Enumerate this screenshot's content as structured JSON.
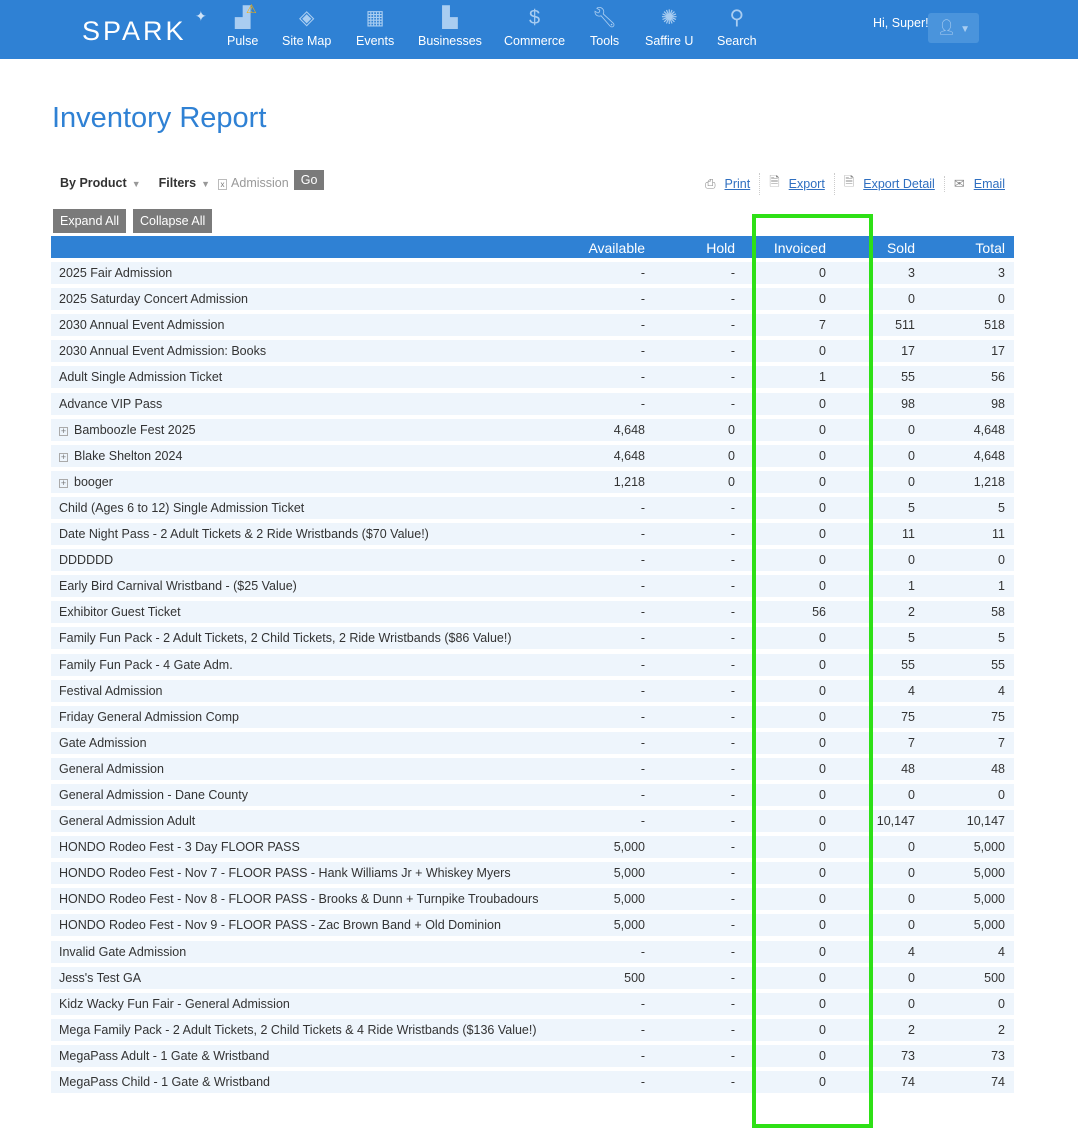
{
  "header": {
    "logo": "SPARK",
    "greeting": "Hi, Super!",
    "nav": [
      {
        "label": "Pulse",
        "icon": "chart-icon"
      },
      {
        "label": "Site Map",
        "icon": "layers-icon"
      },
      {
        "label": "Events",
        "icon": "calendar-icon"
      },
      {
        "label": "Businesses",
        "icon": "building-icon"
      },
      {
        "label": "Commerce",
        "icon": "dollar-icon"
      },
      {
        "label": "Tools",
        "icon": "wrench-icon"
      },
      {
        "label": "Saffire U",
        "icon": "seal-icon"
      },
      {
        "label": "Search",
        "icon": "search-icon"
      }
    ]
  },
  "page": {
    "title": "Inventory Report"
  },
  "toolbar": {
    "group_by": "By Product",
    "filters": "Filters",
    "filter_chip": "Admission",
    "go": "Go",
    "print": "Print",
    "export": "Export",
    "export_detail": "Export Detail",
    "email": "Email",
    "expand_all": "Expand All",
    "collapse_all": "Collapse All"
  },
  "table": {
    "columns": [
      "Available",
      "Hold",
      "Invoiced",
      "Sold",
      "Total"
    ],
    "rows": [
      [
        "2025 Fair Admission",
        "-",
        "-",
        "0",
        "3",
        "3",
        false
      ],
      [
        "2025 Saturday Concert Admission",
        "-",
        "-",
        "0",
        "0",
        "0",
        false
      ],
      [
        "2030 Annual Event Admission",
        "-",
        "-",
        "7",
        "511",
        "518",
        false
      ],
      [
        "2030 Annual Event Admission: Books",
        "-",
        "-",
        "0",
        "17",
        "17",
        false
      ],
      [
        "Adult Single Admission Ticket",
        "-",
        "-",
        "1",
        "55",
        "56",
        false
      ],
      [
        "Advance VIP Pass",
        "-",
        "-",
        "0",
        "98",
        "98",
        false
      ],
      [
        "Bamboozle Fest 2025",
        "4,648",
        "0",
        "0",
        "0",
        "4,648",
        true
      ],
      [
        "Blake Shelton 2024",
        "4,648",
        "0",
        "0",
        "0",
        "4,648",
        true
      ],
      [
        "booger",
        "1,218",
        "0",
        "0",
        "0",
        "1,218",
        true
      ],
      [
        "Child (Ages 6 to 12) Single Admission Ticket",
        "-",
        "-",
        "0",
        "5",
        "5",
        false
      ],
      [
        "Date Night Pass - 2 Adult Tickets & 2 Ride Wristbands ($70 Value!)",
        "-",
        "-",
        "0",
        "11",
        "11",
        false
      ],
      [
        "DDDDDD",
        "-",
        "-",
        "0",
        "0",
        "0",
        false
      ],
      [
        "Early Bird Carnival Wristband - ($25 Value)",
        "-",
        "-",
        "0",
        "1",
        "1",
        false
      ],
      [
        "Exhibitor Guest Ticket",
        "-",
        "-",
        "56",
        "2",
        "58",
        false
      ],
      [
        "Family Fun Pack - 2 Adult Tickets, 2 Child Tickets, 2 Ride Wristbands ($86 Value!)",
        "-",
        "-",
        "0",
        "5",
        "5",
        false
      ],
      [
        "Family Fun Pack - 4 Gate Adm.",
        "-",
        "-",
        "0",
        "55",
        "55",
        false
      ],
      [
        "Festival Admission",
        "-",
        "-",
        "0",
        "4",
        "4",
        false
      ],
      [
        "Friday General Admission Comp",
        "-",
        "-",
        "0",
        "75",
        "75",
        false
      ],
      [
        "Gate Admission",
        "-",
        "-",
        "0",
        "7",
        "7",
        false
      ],
      [
        "General Admission",
        "-",
        "-",
        "0",
        "48",
        "48",
        false
      ],
      [
        "General Admission - Dane County",
        "-",
        "-",
        "0",
        "0",
        "0",
        false
      ],
      [
        "General Admission Adult",
        "-",
        "-",
        "0",
        "10,147",
        "10,147",
        false
      ],
      [
        "HONDO Rodeo Fest - 3 Day FLOOR PASS",
        "5,000",
        "-",
        "0",
        "0",
        "5,000",
        false
      ],
      [
        "HONDO Rodeo Fest - Nov 7 - FLOOR PASS - Hank Williams Jr + Whiskey Myers",
        "5,000",
        "-",
        "0",
        "0",
        "5,000",
        false
      ],
      [
        "HONDO Rodeo Fest - Nov 8 - FLOOR PASS - Brooks & Dunn + Turnpike Troubadours",
        "5,000",
        "-",
        "0",
        "0",
        "5,000",
        false
      ],
      [
        "HONDO Rodeo Fest - Nov 9 - FLOOR PASS - Zac Brown Band + Old Dominion",
        "5,000",
        "-",
        "0",
        "0",
        "5,000",
        false
      ],
      [
        "Invalid Gate Admission",
        "-",
        "-",
        "0",
        "4",
        "4",
        false
      ],
      [
        "Jess's Test GA",
        "500",
        "-",
        "0",
        "0",
        "500",
        false
      ],
      [
        "Kidz Wacky Fun Fair - General Admission",
        "-",
        "-",
        "0",
        "0",
        "0",
        false
      ],
      [
        "Mega Family Pack - 2 Adult Tickets, 2 Child Tickets & 4 Ride Wristbands ($136 Value!)",
        "-",
        "-",
        "0",
        "2",
        "2",
        false
      ],
      [
        "MegaPass Adult - 1 Gate & Wristband",
        "-",
        "-",
        "0",
        "73",
        "73",
        false
      ],
      [
        "MegaPass Child - 1 Gate & Wristband",
        "-",
        "-",
        "0",
        "74",
        "74",
        false
      ]
    ]
  },
  "colors": {
    "brand": "#2f81d4",
    "highlight": "#2ee016",
    "row": "#eef5fc"
  }
}
